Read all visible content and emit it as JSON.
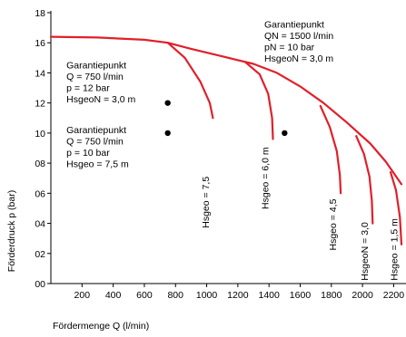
{
  "chart_data": {
    "type": "line",
    "xlabel": "Fördermenge Q (l/min)",
    "ylabel": "Förderdruck p (bar)",
    "xlim": [
      0,
      2250
    ],
    "ylim": [
      0,
      18
    ],
    "x_ticks": [
      200,
      400,
      600,
      800,
      1000,
      1200,
      1400,
      1600,
      1800,
      2000,
      2200
    ],
    "y_ticks": [
      0,
      2,
      4,
      6,
      8,
      10,
      12,
      14,
      16,
      18
    ],
    "y_tick_labels": [
      "00",
      "02",
      "04",
      "06",
      "08",
      "10",
      "12",
      "14",
      "16",
      "18"
    ],
    "grid": false,
    "line_color": "#e0202a",
    "main_curve": {
      "x": [
        0,
        300,
        600,
        750,
        900,
        1100,
        1300,
        1450,
        1600,
        1750,
        1900,
        2050,
        2150,
        2250
      ],
      "y": [
        16.4,
        16.35,
        16.2,
        16.0,
        15.6,
        15.1,
        14.6,
        14.0,
        13.1,
        12.0,
        10.7,
        9.3,
        8.1,
        6.6
      ]
    },
    "series": [
      {
        "label": "Hsgeo = 7,5",
        "x": [
          750,
          860,
          960,
          1020,
          1040
        ],
        "y": [
          16.0,
          15.0,
          13.4,
          12.0,
          11.0
        ]
      },
      {
        "label": "Hsgeo = 6,0 m",
        "x": [
          1250,
          1340,
          1395,
          1420,
          1425
        ],
        "y": [
          14.7,
          13.9,
          12.6,
          11.0,
          9.6
        ]
      },
      {
        "label": "Hsgeo = 4,5",
        "x": [
          1730,
          1790,
          1835,
          1855,
          1860
        ],
        "y": [
          11.8,
          10.4,
          8.8,
          7.2,
          6.0
        ]
      },
      {
        "label": "HsgeoN = 3,0",
        "x": [
          1960,
          2010,
          2045,
          2060,
          2065
        ],
        "y": [
          9.8,
          8.6,
          7.1,
          5.5,
          4.0
        ]
      },
      {
        "label": "Hsgeo = 1,5 m",
        "x": [
          2180,
          2215,
          2240,
          2250
        ],
        "y": [
          7.4,
          6.2,
          4.4,
          2.6
        ]
      }
    ],
    "points": [
      {
        "x": 750,
        "y": 12
      },
      {
        "x": 750,
        "y": 10
      },
      {
        "x": 1500,
        "y": 10
      }
    ],
    "annotations": [
      {
        "lines": [
          "Garantiepunkt",
          "QN = 1500 l/min",
          "pN = 10 bar",
          "HsgeoN = 3,0 m"
        ]
      },
      {
        "lines": [
          "Garantiepunkt",
          "Q = 750 l/min",
          "p = 12 bar",
          "HsgeoN = 3,0 m"
        ]
      },
      {
        "lines": [
          "Garantiepunkt",
          "Q = 750 l/min",
          "p = 10 bar",
          "Hsgeo = 7,5 m"
        ]
      }
    ]
  }
}
